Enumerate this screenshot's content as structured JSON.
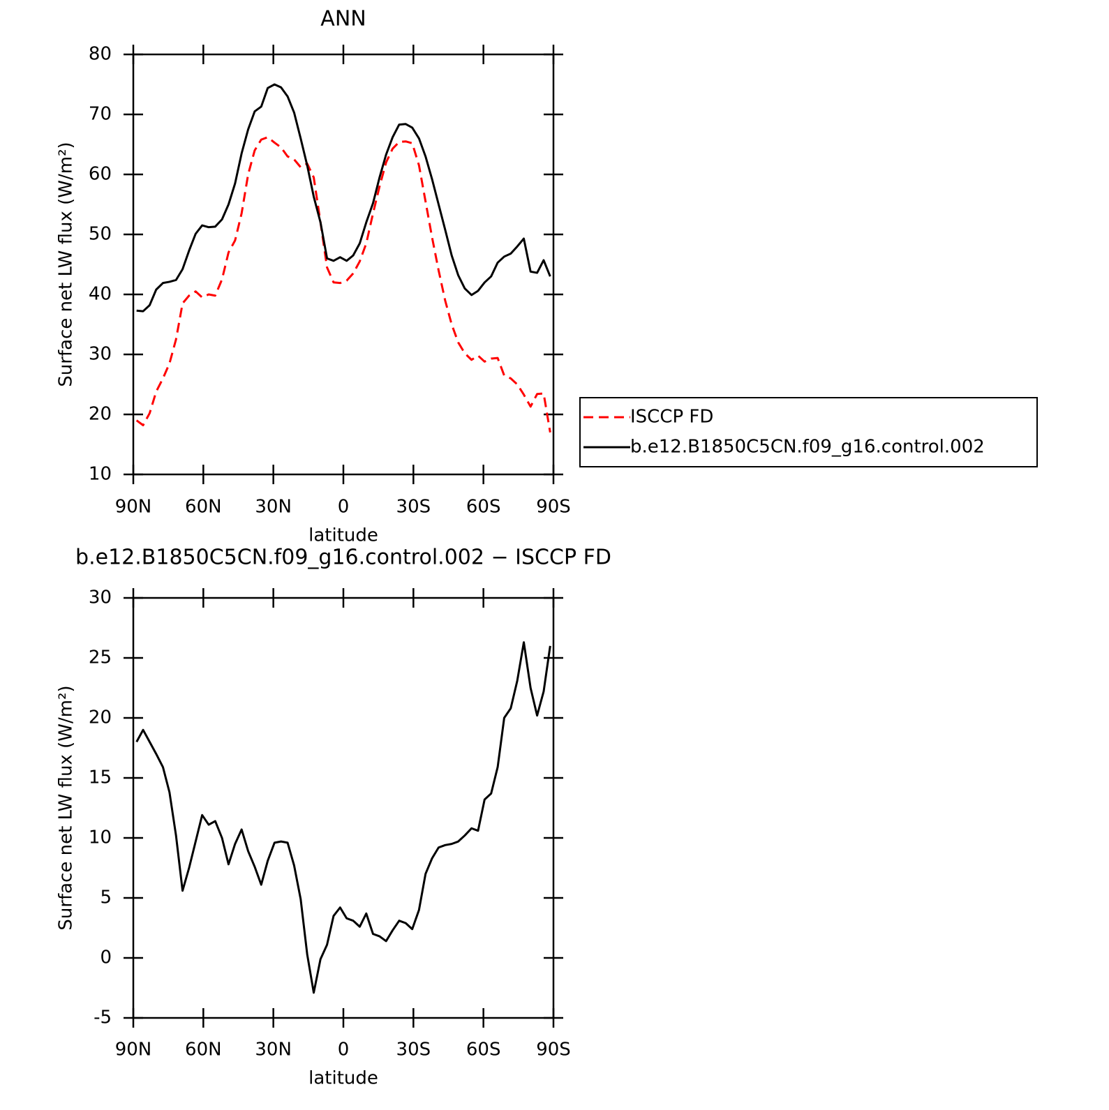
{
  "chart_data": [
    {
      "type": "line",
      "title": "ANN",
      "xlabel": "latitude",
      "ylabel": "Surface net LW flux (W/m²)",
      "x": [
        88.6,
        85.8,
        83.0,
        80.2,
        77.3,
        74.5,
        71.7,
        68.9,
        66.1,
        63.3,
        60.5,
        57.7,
        54.9,
        52.0,
        49.2,
        46.4,
        43.6,
        40.8,
        38.0,
        35.2,
        32.4,
        29.5,
        26.7,
        23.9,
        21.1,
        18.3,
        15.5,
        12.7,
        9.8,
        7.0,
        4.2,
        1.4,
        -1.4,
        -4.2,
        -7.0,
        -9.8,
        -12.7,
        -15.5,
        -18.3,
        -21.1,
        -23.9,
        -26.7,
        -29.5,
        -32.4,
        -35.2,
        -38.0,
        -40.8,
        -43.6,
        -46.4,
        -49.2,
        -52.0,
        -54.9,
        -57.7,
        -60.5,
        -63.3,
        -66.1,
        -68.9,
        -71.7,
        -74.5,
        -77.3,
        -80.2,
        -83.0,
        -85.8,
        -88.6
      ],
      "series": [
        {
          "name": "ISCCP FD",
          "color": "#ff0000",
          "style": "dashed",
          "values": [
            19,
            18.2,
            20.2,
            23.8,
            26,
            28.5,
            32.5,
            38.5,
            39.8,
            40.5,
            39.5,
            40,
            39.8,
            42.5,
            47,
            49,
            53.5,
            60,
            64,
            65.8,
            66.2,
            65.3,
            64.5,
            63,
            62.5,
            61.2,
            61.8,
            59.5,
            52,
            44.5,
            42,
            41.9,
            42.3,
            43.5,
            45.5,
            48.5,
            53.5,
            58,
            62,
            64.3,
            65.4,
            65.5,
            65.2,
            61.5,
            55.5,
            49.5,
            44,
            39,
            35,
            32,
            30.2,
            29.1,
            29.8,
            28.8,
            29.3,
            29.4,
            26.5,
            26,
            25,
            23.3,
            21.3,
            23.4,
            23.5,
            17
          ]
        },
        {
          "name": "b.e12.B1850C5CN.f09_g16.control.002",
          "color": "#000000",
          "style": "solid",
          "values": [
            37.3,
            37.2,
            38.2,
            40.8,
            41.9,
            42.1,
            42.4,
            44.2,
            47.3,
            50.1,
            51.5,
            51.2,
            51.3,
            52.5,
            55,
            58.5,
            63.5,
            67.5,
            70.5,
            71.3,
            74.4,
            75,
            74.5,
            73,
            70.3,
            66,
            61.5,
            56.3,
            52,
            46,
            45.6,
            46.2,
            45.6,
            46.5,
            48.5,
            52,
            55.2,
            59.5,
            63.3,
            66.2,
            68.3,
            68.4,
            67.8,
            66,
            63,
            59.2,
            55,
            50.8,
            46.5,
            43.2,
            41,
            39.9,
            40.6,
            42,
            43,
            45.3,
            46.3,
            46.8,
            48,
            49.3,
            43.8,
            43.6,
            45.7,
            43
          ]
        }
      ],
      "legend": "right",
      "xlim": [
        90,
        -90
      ],
      "xticks": [
        {
          "value": 90,
          "label": "90N"
        },
        {
          "value": 60,
          "label": "60N"
        },
        {
          "value": 30,
          "label": "30N"
        },
        0,
        {
          "value": -30,
          "label": "30S"
        },
        {
          "value": -60,
          "label": "60S"
        },
        {
          "value": -90,
          "label": "90S"
        }
      ],
      "ylim": [
        10,
        80
      ],
      "yticks": [
        10,
        20,
        30,
        40,
        50,
        60,
        70,
        80
      ]
    },
    {
      "type": "line",
      "title": "b.e12.B1850C5CN.f09_g16.control.002 − ISCCP FD",
      "xlabel": "latitude",
      "ylabel": "Surface net LW flux (W/m²)",
      "x": [
        88.6,
        85.8,
        83.0,
        80.2,
        77.3,
        74.5,
        71.7,
        68.9,
        66.1,
        63.3,
        60.5,
        57.7,
        54.9,
        52.0,
        49.2,
        46.4,
        43.6,
        40.8,
        38.0,
        35.2,
        32.4,
        29.5,
        26.7,
        23.9,
        21.1,
        18.3,
        15.5,
        12.7,
        9.8,
        7.0,
        4.2,
        1.4,
        -1.4,
        -4.2,
        -7.0,
        -9.8,
        -12.7,
        -15.5,
        -18.3,
        -21.1,
        -23.9,
        -26.7,
        -29.5,
        -32.4,
        -35.2,
        -38.0,
        -40.8,
        -43.6,
        -46.4,
        -49.2,
        -52.0,
        -54.9,
        -57.7,
        -60.5,
        -63.3,
        -66.1,
        -68.9,
        -71.7,
        -74.5,
        -77.3,
        -80.2,
        -83.0,
        -85.8,
        -88.6
      ],
      "values": [
        18,
        19,
        18,
        17,
        15.9,
        13.8,
        10.2,
        5.6,
        7.5,
        9.7,
        11.9,
        11.1,
        11.4,
        10,
        7.8,
        9.5,
        10.7,
        8.9,
        7.6,
        6.1,
        8.1,
        9.6,
        9.7,
        9.6,
        7.7,
        4.9,
        0.3,
        -2.9,
        -0.1,
        1.1,
        3.5,
        4.2,
        3.3,
        3.1,
        2.6,
        3.7,
        2,
        1.8,
        1.4,
        2.3,
        3.1,
        2.9,
        2.4,
        4,
        7,
        8.3,
        9.2,
        9.4,
        9.5,
        9.7,
        10.2,
        10.8,
        10.6,
        13.2,
        13.7,
        15.9,
        20,
        20.8,
        23.1,
        26.3,
        22.5,
        20.2,
        22.2,
        26
      ],
      "color": "#000000",
      "xlim": [
        90,
        -90
      ],
      "xticks": [
        {
          "value": 90,
          "label": "90N"
        },
        {
          "value": 60,
          "label": "60N"
        },
        {
          "value": 30,
          "label": "30N"
        },
        0,
        {
          "value": -30,
          "label": "30S"
        },
        {
          "value": -60,
          "label": "60S"
        },
        {
          "value": -90,
          "label": "90S"
        }
      ],
      "ylim": [
        -5,
        30
      ],
      "yticks": [
        -5,
        0,
        5,
        10,
        15,
        20,
        25,
        30
      ]
    }
  ]
}
